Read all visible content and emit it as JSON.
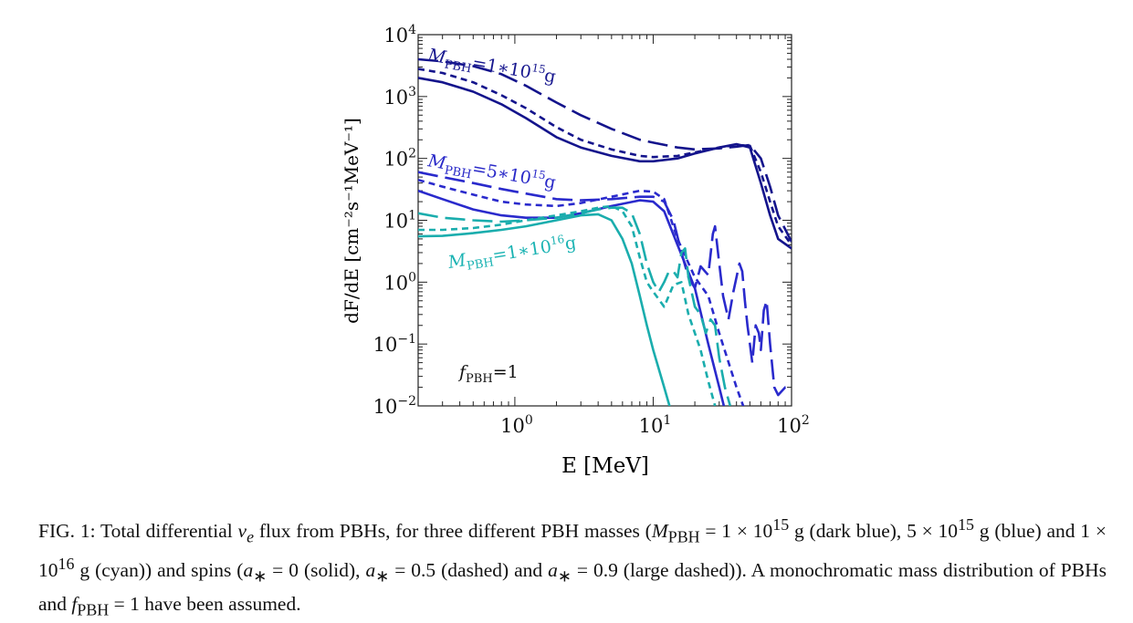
{
  "chart_data": {
    "type": "line",
    "xlabel": "E [MeV]",
    "ylabel": "dF/dE [cm⁻²s⁻¹MeV⁻¹]",
    "xscale": "log",
    "yscale": "log",
    "xlim": [
      0.2,
      100
    ],
    "ylim": [
      0.01,
      10000
    ],
    "x_ticks": [
      {
        "value": 1,
        "label": "10^0"
      },
      {
        "value": 10,
        "label": "10^1"
      },
      {
        "value": 100,
        "label": "10^2"
      }
    ],
    "y_ticks": [
      {
        "value": 0.01,
        "label": "10^−2"
      },
      {
        "value": 0.1,
        "label": "10^−1"
      },
      {
        "value": 1,
        "label": "10^0"
      },
      {
        "value": 10,
        "label": "10^1"
      },
      {
        "value": 100,
        "label": "10^2"
      },
      {
        "value": 1000,
        "label": "10^3"
      },
      {
        "value": 10000,
        "label": "10^4"
      }
    ],
    "grid": false,
    "annotations": [
      {
        "text": "M_PBH=1∗10^15 g",
        "color": "#17178f"
      },
      {
        "text": "M_PBH=5∗10^15 g",
        "color": "#2929c8"
      },
      {
        "text": "M_PBH=1∗10^16 g",
        "color": "#1bb3b3"
      },
      {
        "text": "f_PBH=1",
        "color": "#111111"
      }
    ],
    "series": [
      {
        "mass": "1e15",
        "spin": 0,
        "style": "solid",
        "color": "#14148c",
        "x": [
          0.2,
          0.3,
          0.5,
          0.8,
          1.2,
          2,
          3,
          5,
          8,
          10,
          15,
          20,
          30,
          40,
          50,
          60,
          70,
          80,
          100
        ],
        "y": [
          2000,
          1700,
          1200,
          750,
          450,
          220,
          150,
          110,
          90,
          90,
          100,
          120,
          150,
          170,
          150,
          40,
          12,
          5,
          3.5
        ]
      },
      {
        "mass": "1e15",
        "spin": 0.5,
        "style": "dashed",
        "color": "#14148c",
        "x": [
          0.2,
          0.3,
          0.5,
          0.8,
          1.2,
          2,
          3,
          5,
          8,
          10,
          15,
          20,
          30,
          40,
          50,
          60,
          70,
          80,
          100
        ],
        "y": [
          2800,
          2400,
          1700,
          1050,
          650,
          320,
          200,
          140,
          110,
          105,
          110,
          125,
          150,
          165,
          160,
          60,
          20,
          8,
          4
        ]
      },
      {
        "mass": "1e15",
        "spin": 0.9,
        "style": "longdash",
        "color": "#14148c",
        "x": [
          0.2,
          0.3,
          0.5,
          0.8,
          1.2,
          2,
          3,
          5,
          8,
          10,
          15,
          20,
          30,
          40,
          50,
          60,
          70,
          80,
          100
        ],
        "y": [
          4000,
          3700,
          3100,
          2300,
          1500,
          800,
          500,
          300,
          200,
          180,
          150,
          140,
          145,
          155,
          165,
          100,
          35,
          12,
          4.5
        ]
      },
      {
        "mass": "5e15",
        "spin": 0,
        "style": "solid",
        "color": "#2a2acc",
        "x": [
          0.2,
          0.3,
          0.5,
          0.8,
          1.2,
          2,
          3,
          5,
          8,
          10,
          12,
          15,
          20,
          25,
          30,
          35
        ],
        "y": [
          30,
          22,
          15,
          12,
          11,
          11,
          13,
          17,
          21,
          20,
          14,
          4,
          0.8,
          0.1,
          0.02,
          0.005
        ]
      },
      {
        "mass": "5e15",
        "spin": 0.5,
        "style": "dashed",
        "color": "#2a2acc",
        "x": [
          0.2,
          0.3,
          0.5,
          0.8,
          1.2,
          2,
          3,
          5,
          8,
          10,
          12,
          15,
          20,
          25,
          30,
          40,
          50
        ],
        "y": [
          45,
          35,
          26,
          20,
          18,
          17,
          19,
          24,
          30,
          29,
          22,
          5,
          1.2,
          0.6,
          0.15,
          0.02,
          0.005
        ]
      },
      {
        "mass": "5e15",
        "spin": 0.9,
        "style": "longdash",
        "color": "#2a2acc",
        "x": [
          0.2,
          0.3,
          0.5,
          0.8,
          1.2,
          2,
          3,
          5,
          8,
          10,
          12,
          14,
          16,
          18,
          20,
          22,
          25,
          27,
          28,
          30,
          32,
          35,
          38,
          40,
          42,
          44,
          46,
          48,
          50,
          52,
          55,
          58,
          60,
          63,
          66,
          70,
          75,
          80,
          90,
          100
        ],
        "y": [
          60,
          50,
          40,
          32,
          27,
          22,
          21,
          22,
          24,
          24,
          20,
          10,
          3,
          1.2,
          0.8,
          1.8,
          1.3,
          6,
          8,
          2,
          0.6,
          0.25,
          0.7,
          1.2,
          2,
          1.5,
          0.5,
          0.2,
          0.1,
          0.05,
          0.2,
          0.15,
          0.08,
          0.35,
          0.5,
          0.1,
          0.02,
          0.015,
          0.02,
          0.02
        ]
      },
      {
        "mass": "1e16",
        "spin": 0,
        "style": "solid",
        "color": "#1aadad",
        "x": [
          0.2,
          0.3,
          0.5,
          0.8,
          1.2,
          2,
          3,
          4,
          5,
          6,
          7,
          8,
          9,
          10,
          12,
          14
        ],
        "y": [
          5.5,
          5.6,
          6.2,
          7,
          8,
          10,
          12,
          12.5,
          10,
          5,
          2,
          0.6,
          0.2,
          0.08,
          0.02,
          0.006
        ]
      },
      {
        "mass": "1e16",
        "spin": 0.5,
        "style": "dashed",
        "color": "#1aadad",
        "x": [
          0.2,
          0.3,
          0.5,
          0.8,
          1.2,
          2,
          3,
          4,
          5,
          6,
          7,
          8,
          9,
          10,
          12,
          14,
          16,
          18,
          20,
          22,
          25,
          28
        ],
        "y": [
          7,
          7,
          7.5,
          8.5,
          10,
          12,
          14,
          16,
          17,
          14,
          8,
          2.5,
          1,
          0.7,
          0.4,
          0.9,
          1,
          0.3,
          0.15,
          0.08,
          0.025,
          0.01
        ]
      },
      {
        "mass": "1e16",
        "spin": 0.9,
        "style": "longdash",
        "color": "#1aadad",
        "x": [
          0.2,
          0.3,
          0.5,
          0.8,
          1.2,
          2,
          3,
          4,
          5,
          6,
          7,
          8,
          9,
          10,
          11,
          12,
          13,
          14,
          15,
          16,
          17,
          18,
          20,
          22,
          24,
          26,
          28,
          30,
          33,
          36
        ],
        "y": [
          13,
          11,
          10,
          9.5,
          10,
          11,
          13,
          15,
          16,
          16,
          13,
          6,
          2,
          1,
          0.7,
          1,
          1.5,
          1.5,
          1.2,
          3,
          3.5,
          1.2,
          0.4,
          0.3,
          0.15,
          0.25,
          0.2,
          0.06,
          0.02,
          0.01
        ]
      }
    ]
  },
  "caption": {
    "text": "FIG. 1: Total differential νₑ flux from PBHs, for three different PBH masses (M_PBH = 1 × 10^15 g (dark blue), 5 × 10^15 g (blue) and 1 × 10^16 g (cyan)) and spins (a∗ = 0 (solid), a∗ = 0.5 (dashed) and a∗ = 0.9 (large dashed)). A monochromatic mass distribution of PBHs and f_PBH = 1 have been assumed."
  }
}
